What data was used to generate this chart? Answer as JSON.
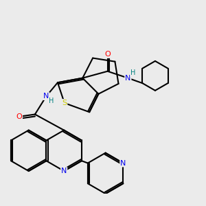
{
  "bg_color": "#ebebeb",
  "line_color": "#000000",
  "bond_width": 1.5,
  "atom_colors": {
    "S": "#cccc00",
    "N": "#0000ee",
    "O": "#ff0000",
    "H": "#008080",
    "C": "#000000"
  },
  "scale": 10.0
}
